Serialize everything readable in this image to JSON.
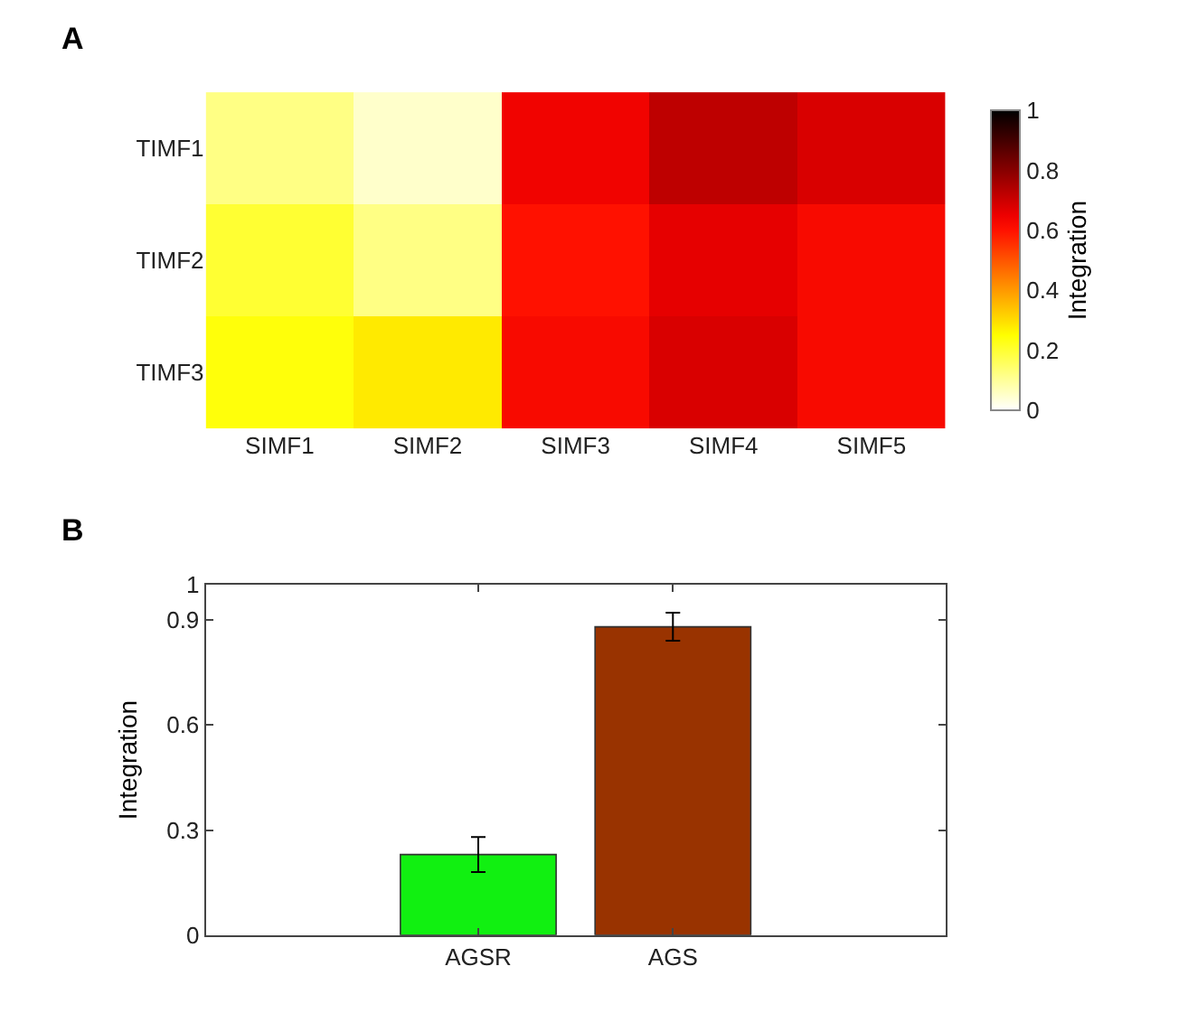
{
  "chart_data": [
    {
      "type": "heatmap",
      "title": "A",
      "categories": [
        "SIMF1",
        "SIMF2",
        "SIMF3",
        "SIMF4",
        "SIMF5"
      ],
      "y_categories": [
        "TIMF1",
        "TIMF2",
        "TIMF3"
      ],
      "cells": [
        [
          0.12,
          0.05,
          0.64,
          0.72,
          0.68
        ],
        [
          0.2,
          0.12,
          0.6,
          0.66,
          0.62
        ],
        [
          0.24,
          0.28,
          0.62,
          0.68,
          0.62
        ]
      ],
      "clabel": "Integration",
      "clim": [
        0,
        1
      ],
      "cticks": [
        0,
        0.2,
        0.4,
        0.6,
        0.8,
        1
      ]
    },
    {
      "type": "bar",
      "title": "B",
      "categories": [
        null,
        "AGSR",
        "AGS"
      ],
      "values": [
        null,
        0.23,
        0.88
      ],
      "colors": [
        "#ffffff",
        "#11f011",
        "#993300"
      ],
      "errors": [
        null,
        0.05,
        0.04
      ],
      "ylabel": "Integration",
      "ylim": [
        0,
        1
      ],
      "yticks": [
        0,
        0.3,
        0.6,
        0.9,
        1
      ]
    }
  ]
}
